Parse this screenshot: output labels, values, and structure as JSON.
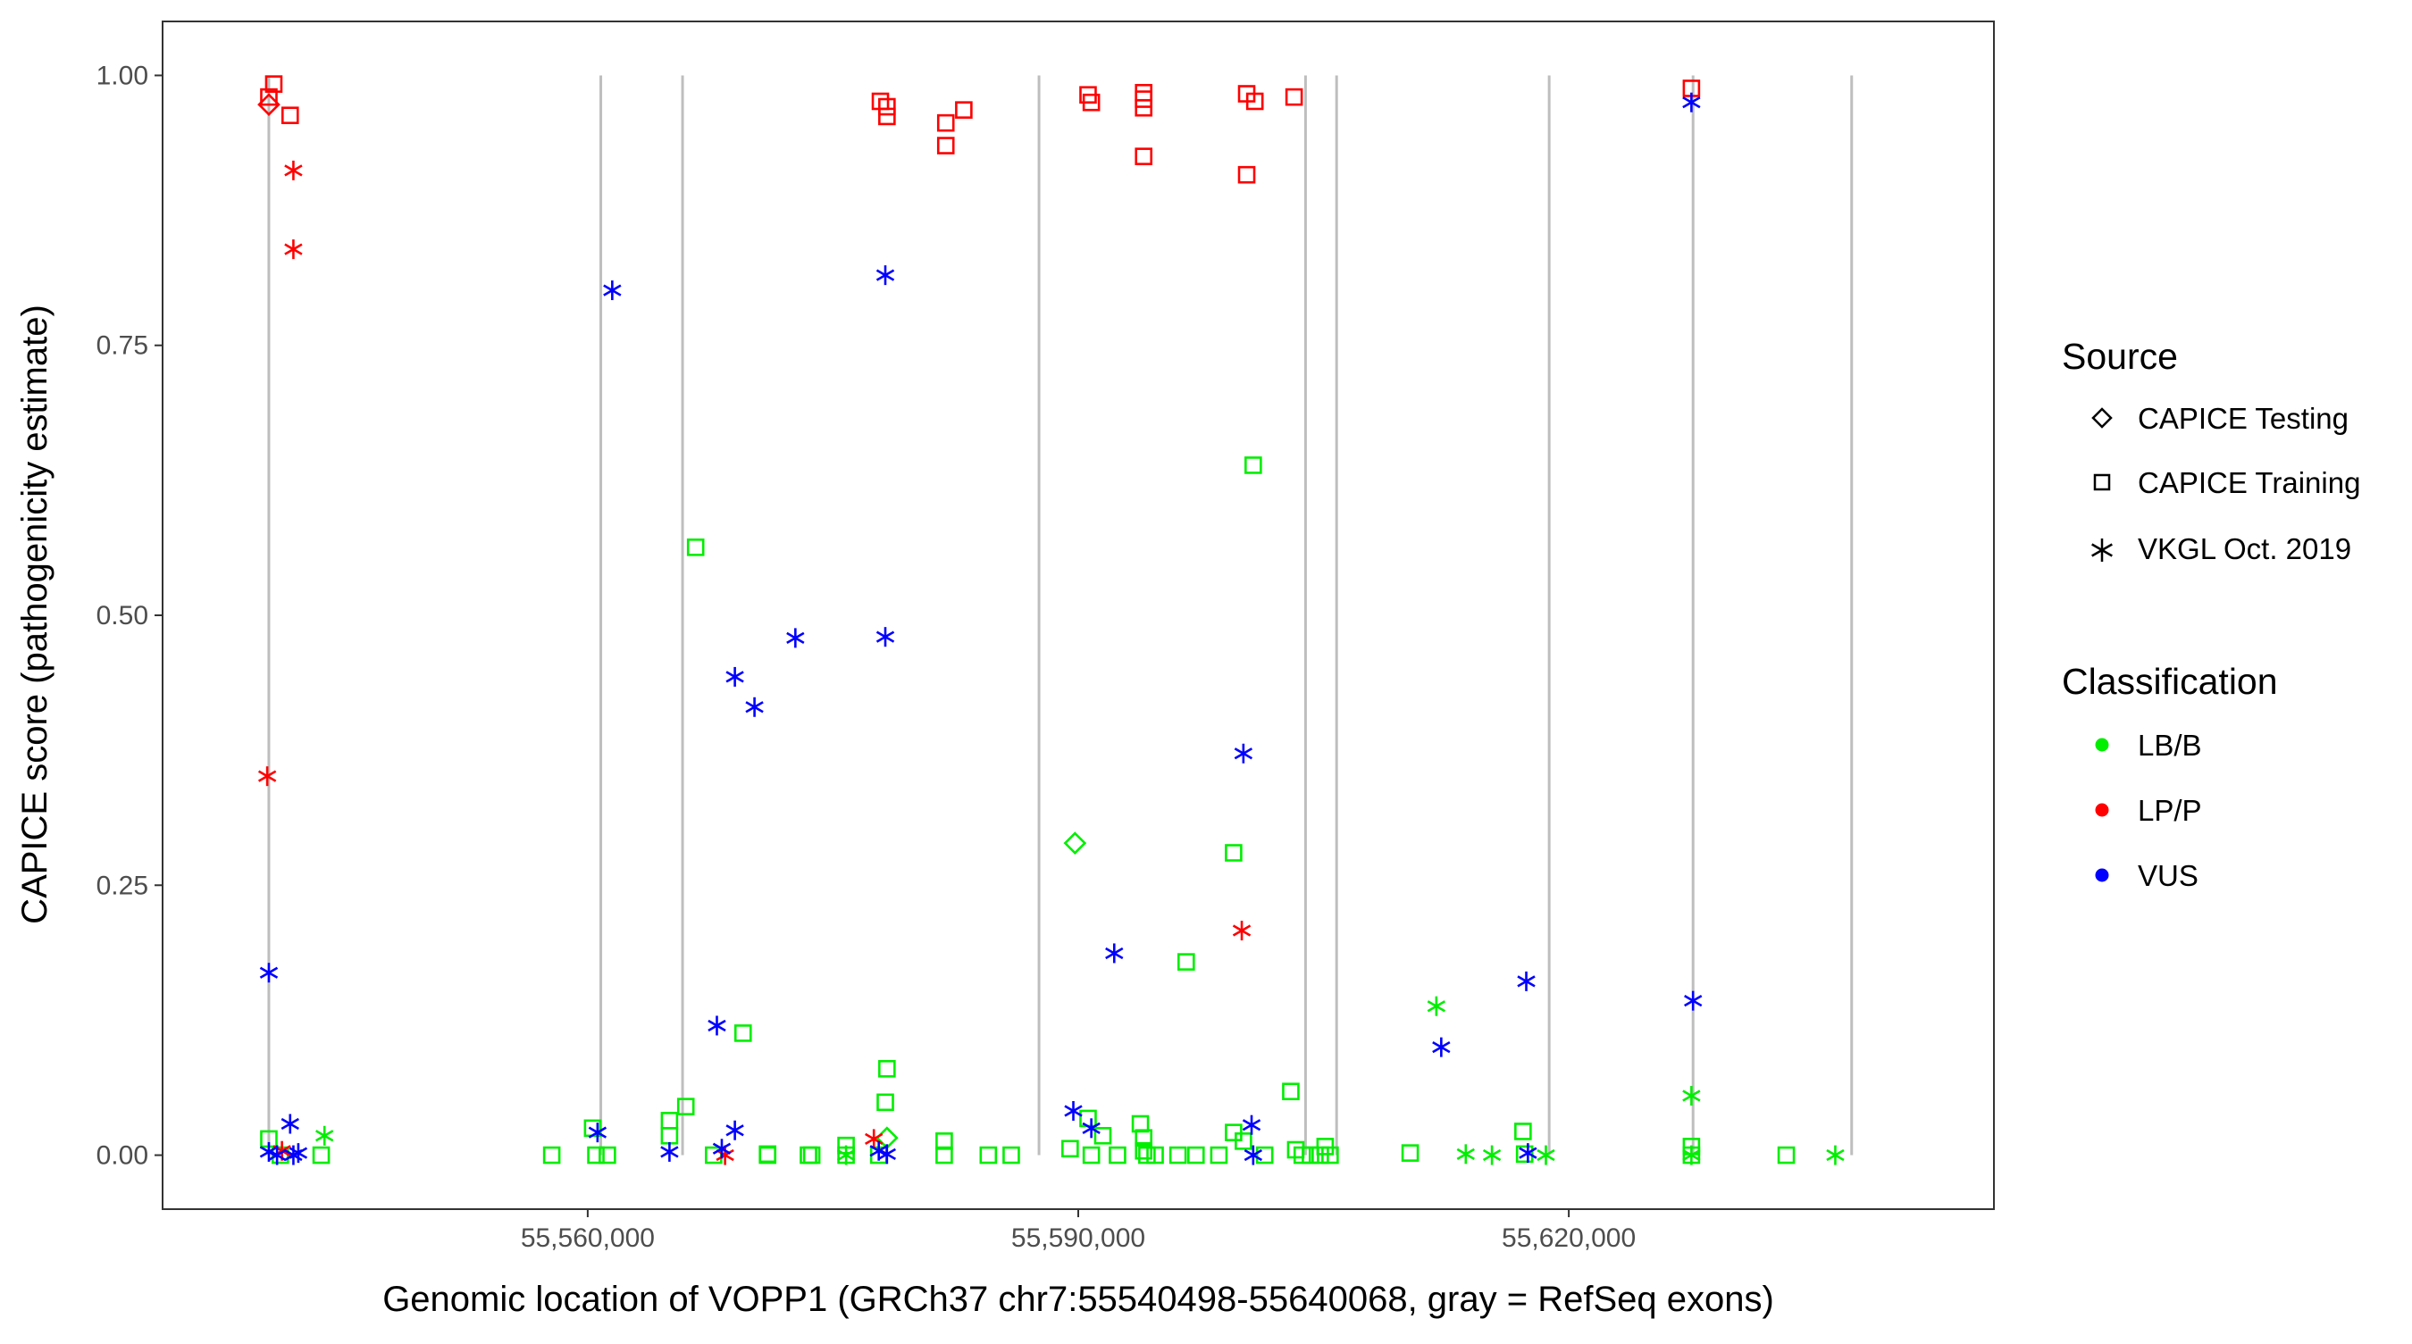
{
  "chart_data": {
    "type": "scatter",
    "title": "",
    "xlabel": "Genomic location of VOPP1 (GRCh37 chr7:55540498-55640068, gray = RefSeq exons)",
    "ylabel": "CAPICE score (pathogenicity estimate)",
    "xlim": [
      55534000,
      55646000
    ],
    "ylim": [
      -0.05,
      1.05
    ],
    "xticks": [
      55560000,
      55590000,
      55620000
    ],
    "xtick_labels": [
      "55,560,000",
      "55,590,000",
      "55,620,000"
    ],
    "yticks": [
      0,
      0.25,
      0.5,
      0.75,
      1.0
    ],
    "ytick_labels": [
      "0.00",
      "0.25",
      "0.50",
      "0.75",
      "1.00"
    ],
    "grid": false,
    "exons": [
      55540498,
      55560800,
      55565800,
      55587600,
      55603900,
      55605800,
      55618800,
      55627600,
      55637300
    ],
    "colors": {
      "LB/B": "#00ee00",
      "LP/P": "#ff0000",
      "VUS": "#0000ff",
      "exon": "#bebebe"
    },
    "legend": {
      "position": "right",
      "source": {
        "title": "Source",
        "items": [
          {
            "label": "CAPICE Testing",
            "shape": "diamond"
          },
          {
            "label": "CAPICE Training",
            "shape": "square"
          },
          {
            "label": "VKGL Oct. 2019",
            "shape": "asterisk"
          }
        ]
      },
      "classification": {
        "title": "Classification",
        "items": [
          {
            "label": "LB/B",
            "color": "#00ee00"
          },
          {
            "label": "LP/P",
            "color": "#ff0000"
          },
          {
            "label": "VUS",
            "color": "#0000ff"
          }
        ]
      }
    },
    "series": [
      {
        "name": "CAPICE Training / LP/P",
        "source": "CAPICE Training",
        "classification": "LP/P",
        "x": [
          55540500,
          55540800,
          55541800,
          55577900,
          55578300,
          55578300,
          55581900,
          55581900,
          55583000,
          55590600,
          55590800,
          55594000,
          55594000,
          55594000,
          55594000,
          55600300,
          55600300,
          55600800,
          55603200,
          55627500
        ],
        "y": [
          0.98,
          0.992,
          0.963,
          0.976,
          0.971,
          0.962,
          0.956,
          0.935,
          0.968,
          0.982,
          0.975,
          0.984,
          0.978,
          0.97,
          0.925,
          0.983,
          0.908,
          0.976,
          0.98,
          0.988
        ]
      },
      {
        "name": "CAPICE Training / LB/B",
        "source": "CAPICE Training",
        "classification": "LB/B",
        "x": [
          55540500,
          55541200,
          55543700,
          55557800,
          55560300,
          55560500,
          55561200,
          55565000,
          55565000,
          55566000,
          55566600,
          55567700,
          55569500,
          55571000,
          55571000,
          55573500,
          55573700,
          55575800,
          55575800,
          55577800,
          55578200,
          55578300,
          55581800,
          55581800,
          55584500,
          55585900,
          55589500,
          55590600,
          55590800,
          55591500,
          55592400,
          55593800,
          55594000,
          55594000,
          55594200,
          55594700,
          55596100,
          55596600,
          55597200,
          55598600,
          55599500,
          55599500,
          55600100,
          55600700,
          55601400,
          55603000,
          55603300,
          55603700,
          55604200,
          55604800,
          55605100,
          55605400,
          55610300,
          55617200,
          55617300,
          55627500,
          55627500,
          55633300
        ],
        "y": [
          0.015,
          0.0,
          0.0,
          0.0,
          0.025,
          0.0,
          0.0,
          0.032,
          0.018,
          0.045,
          0.563,
          0.0,
          0.113,
          0.0,
          0.001,
          0.0,
          0.0,
          0.0,
          0.009,
          0.0,
          0.049,
          0.08,
          0.0,
          0.013,
          0.0,
          0.0,
          0.006,
          0.034,
          0.0,
          0.018,
          0.0,
          0.029,
          0.016,
          0.004,
          0.0,
          0.0,
          0.0,
          0.179,
          0.0,
          0.0,
          0.28,
          0.021,
          0.013,
          0.639,
          0.0,
          0.059,
          0.005,
          0.0,
          0.0,
          0.0,
          0.008,
          0.0,
          0.002,
          0.022,
          0.001,
          0.008,
          0.0,
          0.0
        ]
      },
      {
        "name": "CAPICE Testing / LP/P",
        "source": "CAPICE Testing",
        "classification": "LP/P",
        "x": [
          55540500
        ],
        "y": [
          0.973
        ]
      },
      {
        "name": "CAPICE Testing / LB/B",
        "source": "CAPICE Testing",
        "classification": "LB/B",
        "x": [
          55589800,
          55578300
        ],
        "y": [
          0.289,
          0.016
        ]
      },
      {
        "name": "VKGL Oct. 2019 / LP/P",
        "source": "VKGL Oct. 2019",
        "classification": "LP/P",
        "x": [
          55540400,
          55542000,
          55542000,
          55541300,
          55568400,
          55577500,
          55600000
        ],
        "y": [
          0.351,
          0.912,
          0.839,
          0.004,
          0.0,
          0.015,
          0.208
        ]
      },
      {
        "name": "VKGL Oct. 2019 / VUS",
        "source": "VKGL Oct. 2019",
        "classification": "VUS",
        "x": [
          55540500,
          55540500,
          55541000,
          55541800,
          55542000,
          55542300,
          55561500,
          55560600,
          55565000,
          55567900,
          55568200,
          55569000,
          55569000,
          55570200,
          55572700,
          55577800,
          55578200,
          55578200,
          55578300,
          55589700,
          55590800,
          55592200,
          55600100,
          55600600,
          55600700,
          55612200,
          55617400,
          55617500,
          55627500,
          55627600
        ],
        "y": [
          0.169,
          0.003,
          0.0,
          0.029,
          0.0,
          0.002,
          0.801,
          0.021,
          0.003,
          0.12,
          0.006,
          0.443,
          0.023,
          0.415,
          0.479,
          0.004,
          0.815,
          0.48,
          0.001,
          0.041,
          0.025,
          0.187,
          0.372,
          0.028,
          0.0,
          0.1,
          0.161,
          0.002,
          0.975,
          0.143
        ]
      },
      {
        "name": "VKGL Oct. 2019 / LB/B",
        "source": "VKGL Oct. 2019",
        "classification": "LB/B",
        "x": [
          55543900,
          55575800,
          55611900,
          55613700,
          55615300,
          55618600,
          55627500,
          55627500,
          55636300
        ],
        "y": [
          0.018,
          0.0,
          0.138,
          0.001,
          0.0,
          0.0,
          0.055,
          0.0,
          0.0
        ]
      }
    ]
  }
}
